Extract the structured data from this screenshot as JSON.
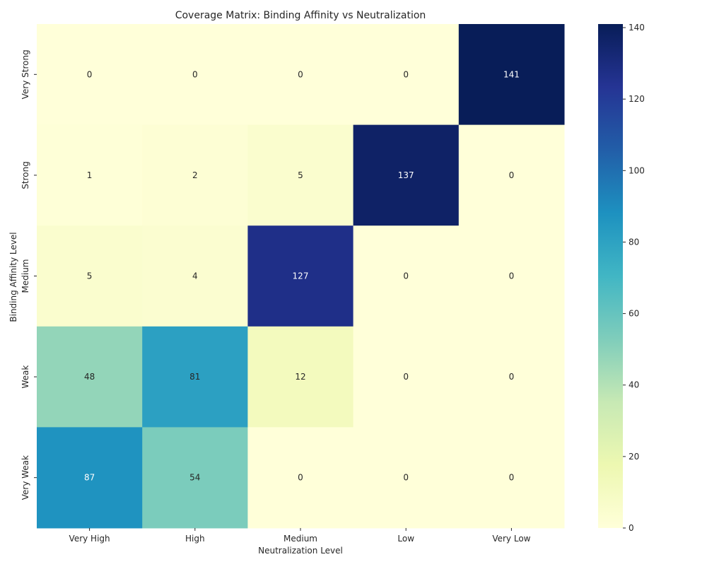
{
  "chart_data": {
    "type": "heatmap",
    "title": "Coverage Matrix: Binding Affinity vs Neutralization",
    "xlabel": "Neutralization Level",
    "ylabel": "Binding Affinity Level",
    "x_categories": [
      "Very High",
      "High",
      "Medium",
      "Low",
      "Very Low"
    ],
    "y_categories": [
      "Very Strong",
      "Strong",
      "Medium",
      "Weak",
      "Very Weak"
    ],
    "values": [
      [
        0,
        0,
        0,
        0,
        141
      ],
      [
        1,
        2,
        5,
        137,
        0
      ],
      [
        5,
        4,
        127,
        0,
        0
      ],
      [
        48,
        81,
        12,
        0,
        0
      ],
      [
        87,
        54,
        0,
        0,
        0
      ]
    ],
    "colorbar": {
      "min": 0,
      "max": 141,
      "ticks": [
        0,
        20,
        40,
        60,
        80,
        100,
        120,
        140
      ],
      "colormap": "YlGnBu"
    },
    "annotations": true,
    "grid": false
  }
}
